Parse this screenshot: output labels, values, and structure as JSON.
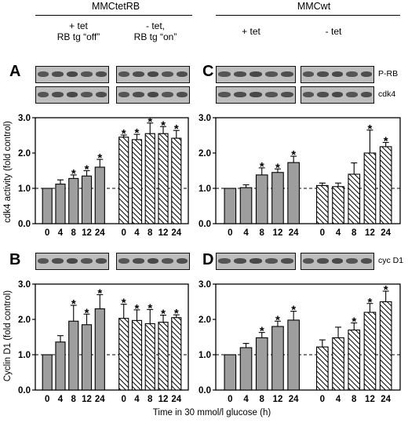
{
  "groups": {
    "left": {
      "title": "MMCtetRB",
      "sub_a_line1": "+ tet",
      "sub_a_line2": "RB tg “off”",
      "sub_b_line1": "- tet,",
      "sub_b_line2": "RB tg “on”"
    },
    "right": {
      "title": "MMCwt",
      "sub_a": "+ tet",
      "sub_b": "- tet"
    }
  },
  "panels": {
    "A": "A",
    "B": "B",
    "C": "C",
    "D": "D"
  },
  "blot_labels": {
    "prb": "P-RB",
    "cdk4": "cdk4",
    "cycd1": "cyc D1"
  },
  "ylabels": {
    "top": "cdk4 activity (fold control)",
    "bottom": "Cyclin D1 (fold control)"
  },
  "xlabel": "Time in 30 mmol/l glucose (h)",
  "chart_data": [
    {
      "panel": "A",
      "type": "bar",
      "categories": [
        "0",
        "4",
        "8",
        "12",
        "24"
      ],
      "series": [
        {
          "values": [
            1.0,
            1.12,
            1.28,
            1.35,
            1.6
          ],
          "errors": [
            0,
            0.12,
            0.1,
            0.15,
            0.22
          ],
          "significant": [
            false,
            false,
            true,
            true,
            true
          ],
          "fill": "solid"
        },
        {
          "values": [
            2.45,
            2.38,
            2.55,
            2.55,
            2.42
          ],
          "errors": [
            0.06,
            0.15,
            0.3,
            0.2,
            0.22
          ],
          "significant": [
            true,
            true,
            true,
            true,
            true
          ],
          "fill": "hatched"
        }
      ],
      "ylim": [
        0.0,
        3.0
      ],
      "yticks": [
        "0.0",
        "1.0",
        "2.0",
        "3.0"
      ],
      "reference_line": 1.0
    },
    {
      "panel": "C",
      "type": "bar",
      "categories": [
        "0",
        "4",
        "8",
        "12",
        "24"
      ],
      "series": [
        {
          "values": [
            1.0,
            1.02,
            1.38,
            1.45,
            1.73
          ],
          "errors": [
            0,
            0.08,
            0.2,
            0.1,
            0.18
          ],
          "significant": [
            false,
            false,
            true,
            true,
            true
          ],
          "fill": "solid"
        },
        {
          "values": [
            1.08,
            1.05,
            1.4,
            2.0,
            2.18
          ],
          "errors": [
            0.07,
            0.1,
            0.32,
            0.65,
            0.12
          ],
          "significant": [
            false,
            false,
            false,
            true,
            true
          ],
          "fill": "hatched"
        }
      ],
      "ylim": [
        0.0,
        3.0
      ],
      "yticks": [
        "0.0",
        "1.0",
        "2.0",
        "3.0"
      ],
      "reference_line": 1.0
    },
    {
      "panel": "B",
      "type": "bar",
      "categories": [
        "0",
        "4",
        "8",
        "12",
        "24"
      ],
      "series": [
        {
          "values": [
            1.0,
            1.36,
            1.95,
            1.85,
            2.3
          ],
          "errors": [
            0,
            0.18,
            0.45,
            0.3,
            0.4
          ],
          "significant": [
            false,
            false,
            true,
            true,
            true
          ],
          "fill": "solid"
        },
        {
          "values": [
            2.03,
            1.97,
            1.88,
            1.92,
            2.05
          ],
          "errors": [
            0.4,
            0.3,
            0.4,
            0.2,
            0.08
          ],
          "significant": [
            true,
            true,
            true,
            true,
            true
          ],
          "fill": "hatched"
        }
      ],
      "ylim": [
        0.0,
        3.0
      ],
      "yticks": [
        "0.0",
        "1.0",
        "2.0",
        "3.0"
      ],
      "reference_line": 1.0
    },
    {
      "panel": "D",
      "type": "bar",
      "categories": [
        "0",
        "4",
        "8",
        "12",
        "24"
      ],
      "series": [
        {
          "values": [
            1.0,
            1.2,
            1.48,
            1.8,
            1.98
          ],
          "errors": [
            0,
            0.12,
            0.15,
            0.15,
            0.25
          ],
          "significant": [
            false,
            false,
            true,
            true,
            true
          ],
          "fill": "solid"
        },
        {
          "values": [
            1.22,
            1.48,
            1.7,
            2.2,
            2.5
          ],
          "errors": [
            0.2,
            0.3,
            0.2,
            0.25,
            0.3
          ],
          "significant": [
            false,
            false,
            true,
            true,
            true
          ],
          "fill": "hatched"
        }
      ],
      "ylim": [
        0.0,
        3.0
      ],
      "yticks": [
        "0.0",
        "1.0",
        "2.0",
        "3.0"
      ],
      "reference_line": 1.0
    }
  ],
  "colors": {
    "solid_bar": "#9e9e9e",
    "hatch": "#000000",
    "blot_bg": "#bdbdbd",
    "band": "#2a2a2a"
  }
}
